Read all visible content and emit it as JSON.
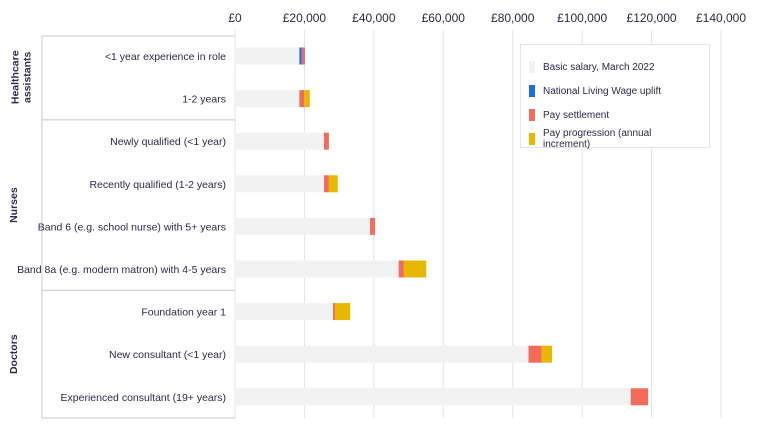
{
  "chart_data": {
    "type": "bar",
    "stacked": true,
    "orientation": "horizontal",
    "xlim": [
      0,
      140000
    ],
    "xticks": [
      "£0",
      "£20,000",
      "£40,000",
      "£60,000",
      "£80,000",
      "£100,000",
      "£120,000",
      "£140,000"
    ],
    "xtick_values": [
      0,
      20000,
      40000,
      60000,
      80000,
      100000,
      120000,
      140000
    ],
    "groups": [
      {
        "name": "Healthcare assistants",
        "categories": [
          "<1 year experience in role",
          "1-2 years"
        ]
      },
      {
        "name": "Nurses",
        "categories": [
          "Newly qualified (<1 year)",
          "Recently qualified (1-2 years)",
          "Band 6 (e.g. school nurse) with 5+ years",
          "Band 8a (e.g. modern matron) with 4-5 years"
        ]
      },
      {
        "name": "Doctors",
        "categories": [
          "Foundation year 1",
          "New consultant (<1 year)",
          "Experienced consultant (19+ years)"
        ]
      }
    ],
    "categories": [
      "<1 year experience in role",
      "1-2 years",
      "Newly qualified (<1 year)",
      "Recently qualified (1-2 years)",
      "Band 6 (e.g. school nurse) with 5+ years",
      "Band 8a (e.g. modern matron) with 4-5 years",
      "Foundation year 1",
      "New consultant (<1 year)",
      "Experienced consultant (19+ years)"
    ],
    "series": [
      {
        "name": "Basic salary, March 2022",
        "color": "#f2f2f2",
        "values": [
          18550,
          18550,
          25650,
          25650,
          38900,
          47150,
          28250,
          84550,
          114000
        ]
      },
      {
        "name": "National Living Wage uplift",
        "color": "#1a6fe0",
        "values": [
          700,
          0,
          0,
          0,
          0,
          0,
          0,
          0,
          0
        ]
      },
      {
        "name": "Pay settlement",
        "color": "#f26b5b",
        "values": [
          900,
          1400,
          1400,
          1400,
          1450,
          1500,
          550,
          3800,
          5000
        ]
      },
      {
        "name": "Pay progression (annual increment)",
        "color": "#e8b800",
        "values": [
          0,
          1600,
          0,
          2550,
          0,
          6450,
          4400,
          3000,
          0
        ]
      }
    ],
    "legend_position": "top-right",
    "title": "",
    "xlabel": "",
    "ylabel": ""
  }
}
